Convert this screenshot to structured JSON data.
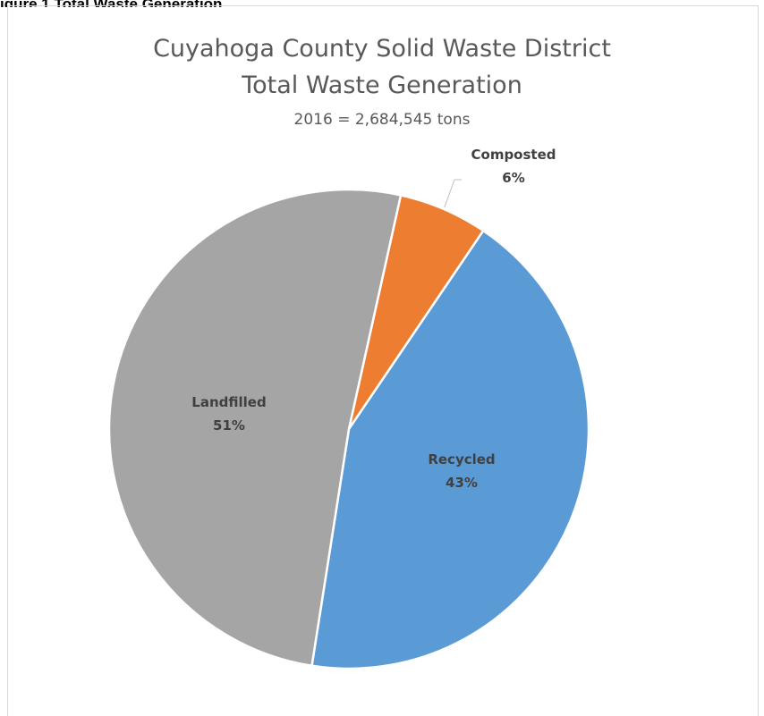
{
  "caption": {
    "text": "igure 1 Total Waste Generation"
  },
  "chart_data": {
    "type": "pie",
    "title_lines": [
      "Cuyahoga County Solid Waste District",
      "Total Waste Generation"
    ],
    "subtitle": "2016 = 2,684,545 tons",
    "slices": [
      {
        "name": "Composted",
        "value": 6,
        "label": "6%",
        "color": "#ED7D31"
      },
      {
        "name": "Recycled",
        "value": 43,
        "label": "43%",
        "color": "#5B9BD5"
      },
      {
        "name": "Landfilled",
        "value": 51,
        "label": "51%",
        "color": "#A5A5A5"
      }
    ],
    "start_angle_deg": 12.5,
    "direction": "clockwise",
    "label_color": "#404040",
    "border_color": "#FFFFFF"
  }
}
